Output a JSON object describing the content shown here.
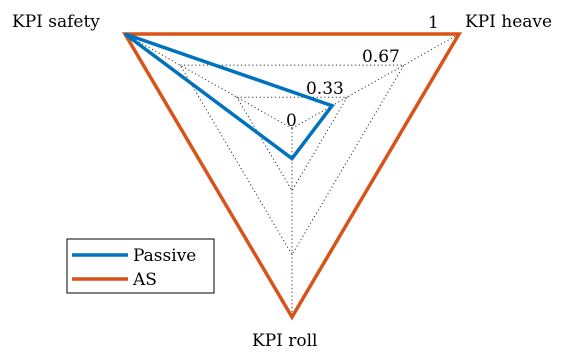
{
  "chart_data": {
    "type": "radar",
    "axes": [
      "KPI safety",
      "KPI heave",
      "KPI roll"
    ],
    "ticks": [
      "0",
      "0.33",
      "0.67",
      "1"
    ],
    "range": [
      0,
      1
    ],
    "grid_levels": [
      0,
      0.33,
      0.67,
      1
    ],
    "series": [
      {
        "name": "Passive",
        "color": "#0072BD",
        "values": [
          1.0,
          0.24,
          0.16
        ]
      },
      {
        "name": "AS",
        "color": "#D95319",
        "values": [
          1.0,
          1.0,
          1.0
        ]
      }
    ],
    "legend": {
      "position": "bottom-left",
      "entries": [
        "Passive",
        "AS"
      ]
    }
  }
}
